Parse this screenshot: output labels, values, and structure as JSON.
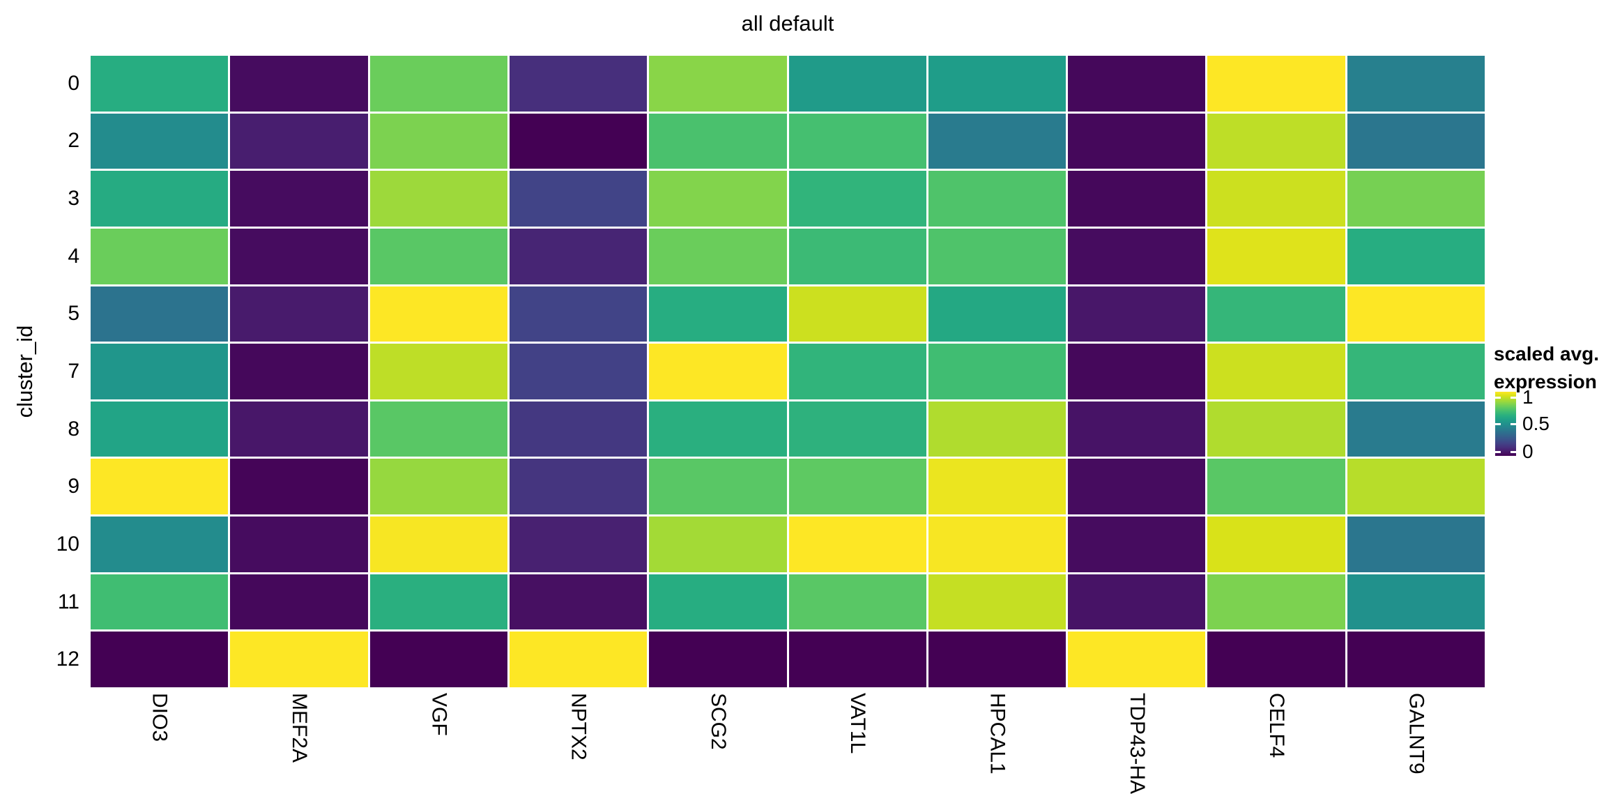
{
  "title": "all default",
  "y_axis": {
    "label": "cluster_id",
    "ticks": [
      "0",
      "2",
      "3",
      "4",
      "5",
      "7",
      "8",
      "9",
      "10",
      "11",
      "12"
    ]
  },
  "x_axis": {
    "ticks": [
      "DIO3",
      "MEF2A",
      "VGF",
      "NPTX2",
      "SCG2",
      "VAT1L",
      "HPCAL1",
      "TDP43-HA",
      "CELF4",
      "GALNT9"
    ]
  },
  "legend": {
    "title_line1": "scaled avg.",
    "title_line2": "expression",
    "ticks": [
      "1",
      "0.5",
      "0"
    ]
  },
  "chart_data": {
    "type": "heatmap",
    "title": "all default",
    "ylabel": "cluster_id",
    "xlabel": "",
    "rows": [
      "0",
      "2",
      "3",
      "4",
      "5",
      "7",
      "8",
      "9",
      "10",
      "11",
      "12"
    ],
    "columns": [
      "DIO3",
      "MEF2A",
      "VGF",
      "NPTX2",
      "SCG2",
      "VAT1L",
      "HPCAL1",
      "TDP43-HA",
      "CELF4",
      "GALNT9"
    ],
    "values": [
      [
        0.62,
        0.03,
        0.77,
        0.13,
        0.82,
        0.54,
        0.55,
        0.02,
        1.0,
        0.43
      ],
      [
        0.48,
        0.08,
        0.8,
        0.0,
        0.71,
        0.7,
        0.41,
        0.02,
        0.9,
        0.39
      ],
      [
        0.61,
        0.03,
        0.85,
        0.2,
        0.81,
        0.65,
        0.72,
        0.02,
        0.92,
        0.79
      ],
      [
        0.77,
        0.03,
        0.74,
        0.1,
        0.77,
        0.68,
        0.72,
        0.03,
        0.95,
        0.62
      ],
      [
        0.38,
        0.07,
        1.0,
        0.2,
        0.62,
        0.92,
        0.6,
        0.06,
        0.66,
        1.0
      ],
      [
        0.52,
        0.02,
        0.9,
        0.19,
        1.0,
        0.65,
        0.69,
        0.02,
        0.92,
        0.66
      ],
      [
        0.58,
        0.06,
        0.74,
        0.16,
        0.63,
        0.64,
        0.88,
        0.05,
        0.88,
        0.41
      ],
      [
        1.0,
        0.01,
        0.84,
        0.15,
        0.74,
        0.75,
        0.97,
        0.03,
        0.74,
        0.89
      ],
      [
        0.48,
        0.03,
        0.99,
        0.09,
        0.86,
        1.0,
        0.99,
        0.03,
        0.94,
        0.39
      ],
      [
        0.69,
        0.02,
        0.63,
        0.04,
        0.62,
        0.74,
        0.91,
        0.05,
        0.8,
        0.5
      ],
      [
        0.0,
        1.0,
        0.0,
        1.0,
        0.0,
        0.0,
        0.0,
        1.0,
        0.0,
        0.0
      ]
    ],
    "colormap": "viridis",
    "color_domain": [
      0,
      1
    ],
    "legend_title": "scaled avg. expression",
    "legend_position": "right",
    "grid": "white gaps between tiles"
  },
  "colors": {
    "background": "#ffffff",
    "text": "#000000",
    "gridline": "#ffffff",
    "viridis_stops": [
      [
        0.0,
        "#440154"
      ],
      [
        0.0625,
        "#48186a"
      ],
      [
        0.125,
        "#472d7b"
      ],
      [
        0.1875,
        "#424086"
      ],
      [
        0.25,
        "#3b528b"
      ],
      [
        0.3125,
        "#33638d"
      ],
      [
        0.375,
        "#2c728e"
      ],
      [
        0.4375,
        "#26828e"
      ],
      [
        0.5,
        "#21918c"
      ],
      [
        0.5625,
        "#1fa088"
      ],
      [
        0.625,
        "#28ae80"
      ],
      [
        0.6875,
        "#3fbc73"
      ],
      [
        0.75,
        "#5ec962"
      ],
      [
        0.8125,
        "#84d44b"
      ],
      [
        0.875,
        "#addc30"
      ],
      [
        0.9375,
        "#d8e219"
      ],
      [
        1.0,
        "#fde725"
      ]
    ]
  }
}
